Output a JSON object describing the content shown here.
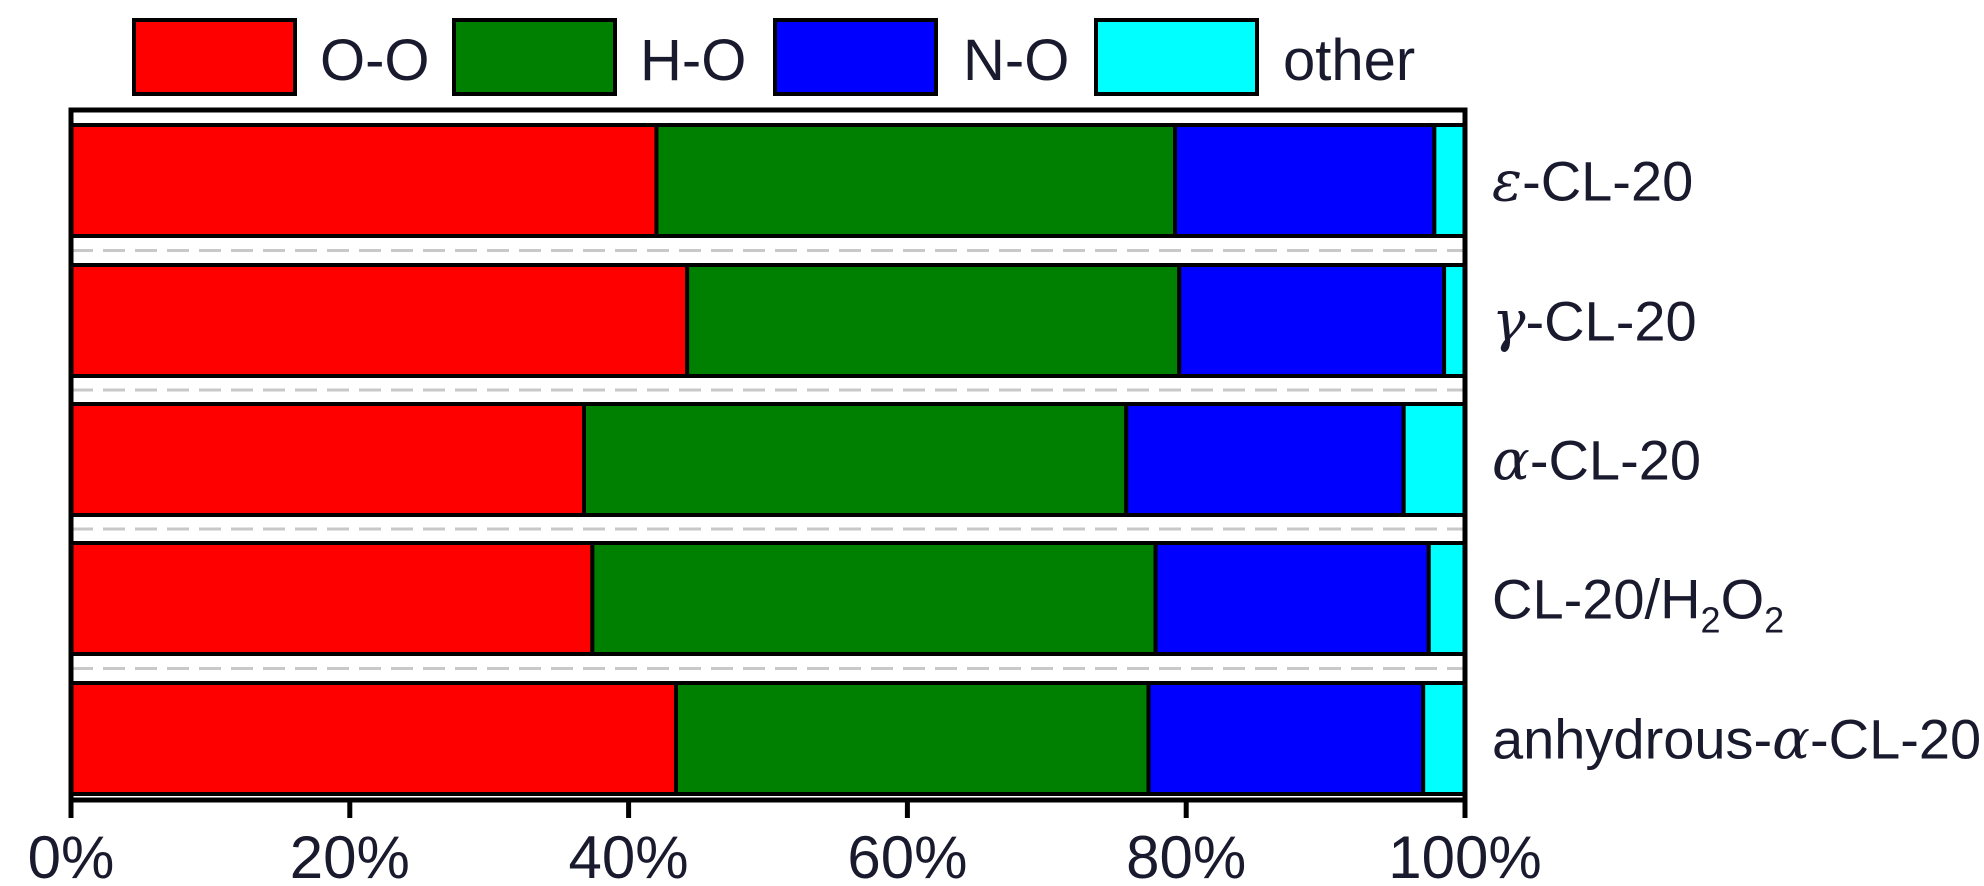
{
  "chart_data": {
    "type": "bar",
    "orientation": "horizontal",
    "stacked": true,
    "percent_scale": true,
    "categories": [
      {
        "greek": "ε",
        "text": "-CL-20"
      },
      {
        "greek": "γ",
        "text": "-CL-20"
      },
      {
        "greek": "α",
        "text": "-CL-20"
      },
      {
        "parts": [
          "CL-20/H",
          "2",
          "O",
          "2"
        ]
      },
      {
        "prefix": "anhydrous-",
        "greek": "α",
        "text": "-CL-20"
      }
    ],
    "series": [
      {
        "name": "O-O",
        "color": "#ff0000",
        "values": [
          42.0,
          44.2,
          36.8,
          37.4,
          43.4
        ]
      },
      {
        "name": "H-O",
        "color": "#008000",
        "values": [
          37.2,
          35.3,
          38.9,
          40.4,
          33.9
        ]
      },
      {
        "name": "N-O",
        "color": "#0000ff",
        "values": [
          18.6,
          19.0,
          19.9,
          19.6,
          19.7
        ]
      },
      {
        "name": "other",
        "color": "#00ffff",
        "values": [
          2.2,
          1.5,
          4.4,
          2.6,
          3.0
        ]
      }
    ],
    "xlim": [
      0,
      100
    ],
    "xticks": [
      "0%",
      "20%",
      "40%",
      "60%",
      "80%",
      "100%"
    ],
    "legend_position": "top",
    "grid": false,
    "separator_lines": "dashed"
  }
}
